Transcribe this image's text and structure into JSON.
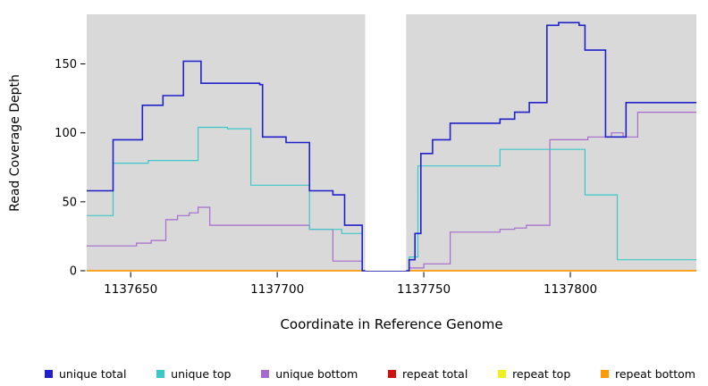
{
  "chart_data": {
    "type": "line",
    "subtype": "step-coverage",
    "title": "",
    "xlabel": "Coordinate in Reference Genome",
    "ylabel": "Read Coverage Depth",
    "xlim": [
      1137635,
      1137843
    ],
    "ylim": [
      0,
      186
    ],
    "x_ticks": [
      1137650,
      1137700,
      1137750,
      1137800
    ],
    "y_ticks": [
      0,
      50,
      100,
      150
    ],
    "grid": false,
    "legend_position": "bottom",
    "plot_bg": "#d9d9d9",
    "gap_region": {
      "start": 1137730,
      "end": 1137744
    },
    "draw_order": [
      3,
      4,
      5,
      2,
      1,
      0
    ],
    "series": [
      {
        "name": "unique total",
        "color": "#2121cc",
        "width": 1.6,
        "step": true,
        "points": [
          [
            1137635,
            58
          ],
          [
            1137644,
            95
          ],
          [
            1137654,
            120
          ],
          [
            1137661,
            127
          ],
          [
            1137668,
            152
          ],
          [
            1137674,
            136
          ],
          [
            1137694,
            135
          ],
          [
            1137695,
            97
          ],
          [
            1137703,
            93
          ],
          [
            1137711,
            58
          ],
          [
            1137719,
            55
          ],
          [
            1137723,
            33
          ],
          [
            1137729,
            0
          ],
          [
            1137745,
            8
          ],
          [
            1137747,
            27
          ],
          [
            1137749,
            85
          ],
          [
            1137753,
            95
          ],
          [
            1137759,
            107
          ],
          [
            1137776,
            110
          ],
          [
            1137781,
            115
          ],
          [
            1137786,
            122
          ],
          [
            1137792,
            178
          ],
          [
            1137796,
            180
          ],
          [
            1137803,
            178
          ],
          [
            1137805,
            160
          ],
          [
            1137812,
            97
          ],
          [
            1137819,
            122
          ]
        ]
      },
      {
        "name": "unique top",
        "color": "#3cc8c8",
        "width": 1.2,
        "step": true,
        "points": [
          [
            1137635,
            40
          ],
          [
            1137644,
            78
          ],
          [
            1137656,
            80
          ],
          [
            1137673,
            104
          ],
          [
            1137683,
            103
          ],
          [
            1137691,
            62
          ],
          [
            1137711,
            30
          ],
          [
            1137722,
            27
          ],
          [
            1137729,
            0
          ],
          [
            1137745,
            10
          ],
          [
            1137748,
            76
          ],
          [
            1137776,
            88
          ],
          [
            1137805,
            55
          ],
          [
            1137816,
            8
          ]
        ]
      },
      {
        "name": "unique bottom",
        "color": "#a66bcc",
        "width": 1.2,
        "step": true,
        "points": [
          [
            1137635,
            18
          ],
          [
            1137652,
            20
          ],
          [
            1137657,
            22
          ],
          [
            1137662,
            37
          ],
          [
            1137666,
            40
          ],
          [
            1137670,
            42
          ],
          [
            1137673,
            46
          ],
          [
            1137677,
            33
          ],
          [
            1137711,
            30
          ],
          [
            1137719,
            7
          ],
          [
            1137729,
            0
          ],
          [
            1137745,
            2
          ],
          [
            1137750,
            5
          ],
          [
            1137759,
            28
          ],
          [
            1137776,
            30
          ],
          [
            1137781,
            31
          ],
          [
            1137785,
            33
          ],
          [
            1137793,
            95
          ],
          [
            1137806,
            97
          ],
          [
            1137814,
            100
          ],
          [
            1137818,
            97
          ],
          [
            1137823,
            115
          ]
        ]
      },
      {
        "name": "repeat total",
        "color": "#cc1111",
        "width": 1.2,
        "step": true,
        "points": [
          [
            1137635,
            0
          ]
        ]
      },
      {
        "name": "repeat top",
        "color": "#f0f01e",
        "width": 1.2,
        "step": true,
        "points": [
          [
            1137635,
            0
          ]
        ]
      },
      {
        "name": "repeat bottom",
        "color": "#ff9900",
        "width": 1.6,
        "step": true,
        "points": [
          [
            1137635,
            0
          ]
        ]
      }
    ]
  }
}
